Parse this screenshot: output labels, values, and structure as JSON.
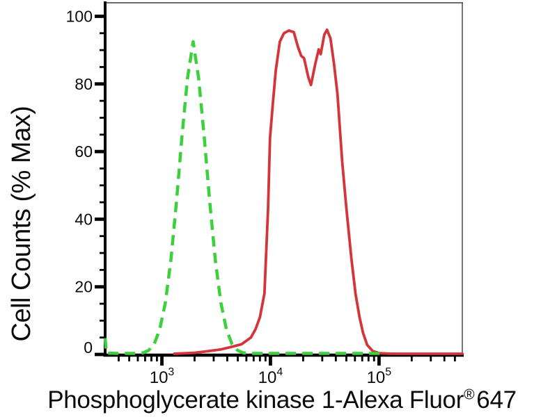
{
  "figure": {
    "ylabel": "Cell Counts (% Max)",
    "xlabel_main": "Phosphoglycerate kinase 1-Alexa Fluor",
    "xlabel_sup": "®",
    "xlabel_suffix": "647",
    "background_color": "#ffffff",
    "axis_color": "#000000",
    "frame_color": "#3c3c3c",
    "text_color": "#0b0b0b"
  },
  "chart_data": {
    "type": "line",
    "subtype": "flow-cytometry-histogram-overlay",
    "title": "",
    "xlabel": "Phosphoglycerate kinase 1-Alexa Fluor® 647",
    "ylabel": "Cell Counts (% Max)",
    "x_scale": "log",
    "y_scale": "linear",
    "xlim": [
      300,
      585000
    ],
    "ylim": [
      0,
      104
    ],
    "grid": false,
    "legend_position": "none",
    "x_tick_exponents": [
      3,
      4,
      5
    ],
    "x_major_ticks": [
      1000,
      10000,
      100000
    ],
    "y_ticks": [
      0,
      20,
      40,
      60,
      80,
      100
    ],
    "y_minor_step": 5,
    "series": [
      {
        "name": "red-solid-curve",
        "color": "#d43538",
        "style": "solid",
        "peak1": {
          "x": 14800,
          "y": 95.8
        },
        "valley": {
          "x": 23600,
          "y": 79.7
        },
        "peak2": {
          "x": 33200,
          "y": 96
        },
        "points": [
          [
            1300,
            0.2
          ],
          [
            2000,
            0.5
          ],
          [
            2700,
            1
          ],
          [
            3500,
            1.5
          ],
          [
            4200,
            2.1
          ],
          [
            5400,
            3
          ],
          [
            6600,
            5
          ],
          [
            7300,
            7.5
          ],
          [
            8000,
            11
          ],
          [
            8800,
            18
          ],
          [
            9500,
            43
          ],
          [
            9900,
            64
          ],
          [
            10500,
            74
          ],
          [
            11200,
            84
          ],
          [
            12200,
            92.5
          ],
          [
            13300,
            95
          ],
          [
            14800,
            95.8
          ],
          [
            16400,
            95.3
          ],
          [
            17900,
            91
          ],
          [
            19200,
            88.3
          ],
          [
            20400,
            87.6
          ],
          [
            22300,
            82
          ],
          [
            23600,
            79.7
          ],
          [
            25800,
            85.7
          ],
          [
            27800,
            90.2
          ],
          [
            29000,
            88.8
          ],
          [
            31300,
            94.5
          ],
          [
            33200,
            96
          ],
          [
            35700,
            93.5
          ],
          [
            38500,
            86
          ],
          [
            41400,
            77
          ],
          [
            45800,
            57
          ],
          [
            50100,
            43
          ],
          [
            55600,
            28.5
          ],
          [
            60700,
            18
          ],
          [
            66200,
            11
          ],
          [
            71300,
            6.3
          ],
          [
            77800,
            2.8
          ],
          [
            87500,
            1
          ],
          [
            100000,
            0.4
          ],
          [
            130000,
            0.2
          ],
          [
            585000,
            0.2
          ]
        ]
      },
      {
        "name": "green-dashed-curve",
        "color": "#3cd03c",
        "style": "dashed",
        "peak1": {
          "x": 1940,
          "y": 92.5
        },
        "points": [
          [
            300,
            4.8
          ],
          [
            308,
            0.4
          ],
          [
            400,
            0.3
          ],
          [
            500,
            0.3
          ],
          [
            597,
            0.3
          ],
          [
            672,
            0.5
          ],
          [
            755,
            1.2
          ],
          [
            850,
            3.1
          ],
          [
            955,
            7.4
          ],
          [
            1075,
            15.2
          ],
          [
            1210,
            27.8
          ],
          [
            1360,
            45
          ],
          [
            1530,
            64.4
          ],
          [
            1720,
            81.7
          ],
          [
            1940,
            92.5
          ],
          [
            2180,
            81.7
          ],
          [
            2455,
            64.4
          ],
          [
            2760,
            45
          ],
          [
            3105,
            27.8
          ],
          [
            3495,
            15.2
          ],
          [
            3930,
            7.4
          ],
          [
            4420,
            3.1
          ],
          [
            4975,
            1.2
          ],
          [
            5600,
            0.5
          ],
          [
            6300,
            0.3
          ],
          [
            10000,
            0.3
          ],
          [
            30000,
            0.3
          ],
          [
            110000,
            0.3
          ]
        ]
      }
    ]
  }
}
